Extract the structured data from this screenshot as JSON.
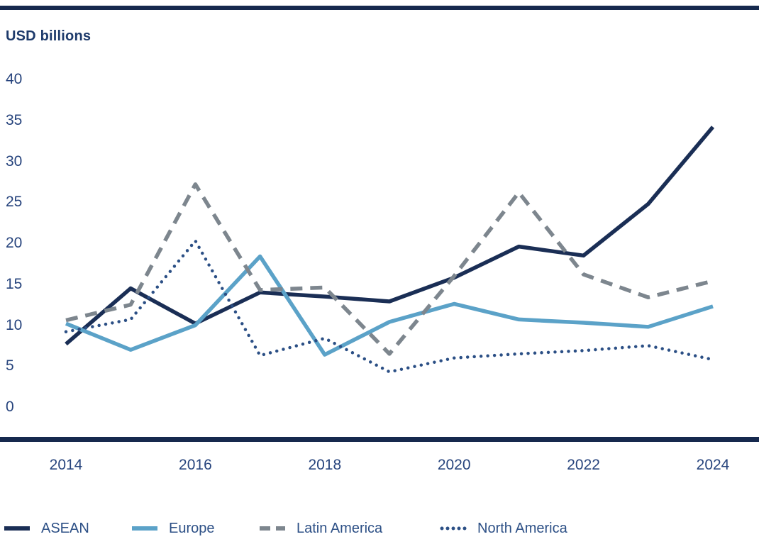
{
  "header": {
    "title": "USD billions"
  },
  "colors": {
    "rule": "#16294e",
    "title_text": "#1d3a6b",
    "axis_text": "#27447d",
    "legend_text": "#2d5086"
  },
  "chart_data": {
    "type": "line",
    "title": "USD billions",
    "xlabel": "",
    "ylabel": "USD billions",
    "x": [
      2014,
      2015,
      2016,
      2017,
      2018,
      2019,
      2020,
      2021,
      2022,
      2023,
      2024
    ],
    "x_tick_labels": [
      "2014",
      "2016",
      "2018",
      "2020",
      "2022",
      "2024"
    ],
    "x_tick_years": [
      2014,
      2016,
      2018,
      2020,
      2022,
      2024
    ],
    "y_ticks": [
      0,
      5,
      10,
      15,
      20,
      25,
      30,
      35,
      40
    ],
    "ylim": [
      0,
      40
    ],
    "grid": false,
    "legend_position": "bottom",
    "series": [
      {
        "name": "ASEAN",
        "style": "solid",
        "color": "#1a2e55",
        "values": [
          7.7,
          14.5,
          10.2,
          14.0,
          13.5,
          12.9,
          15.8,
          19.6,
          18.5,
          24.8,
          34.2
        ]
      },
      {
        "name": "Europe",
        "style": "solid",
        "color": "#5ba2c8",
        "values": [
          10.2,
          7.0,
          10.0,
          18.4,
          6.4,
          10.4,
          12.6,
          10.7,
          10.3,
          9.8,
          12.3
        ]
      },
      {
        "name": "Latin America",
        "style": "dashed",
        "color": "#7d868e",
        "values": [
          10.6,
          12.5,
          27.2,
          14.3,
          14.6,
          6.5,
          16.0,
          26.2,
          16.2,
          13.4,
          15.4
        ]
      },
      {
        "name": "North America",
        "style": "dotted",
        "color": "#2b4f85",
        "values": [
          9.2,
          10.7,
          20.3,
          6.3,
          8.4,
          4.3,
          6.0,
          6.5,
          6.9,
          7.5,
          5.8
        ]
      }
    ]
  }
}
